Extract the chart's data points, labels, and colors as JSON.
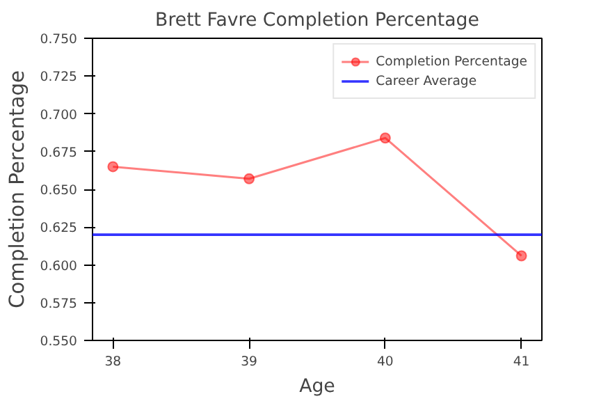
{
  "chart_data": {
    "type": "line",
    "title": "Brett Favre Completion Percentage",
    "xlabel": "Age",
    "ylabel": "Completion Percentage",
    "x": [
      38,
      39,
      40,
      41
    ],
    "series": [
      {
        "name": "Completion Percentage",
        "color": "#ff0000",
        "values": [
          0.665,
          0.657,
          0.684,
          0.606
        ]
      }
    ],
    "xlim": [
      37.85,
      41.15
    ],
    "xticks": [
      38,
      39,
      40,
      41
    ],
    "ylim": [
      0.55,
      0.75
    ],
    "yticks": [
      {
        "value": 0.55,
        "label": "0.550"
      },
      {
        "value": 0.575,
        "label": "0.575"
      },
      {
        "value": 0.6,
        "label": "0.600"
      },
      {
        "value": 0.625,
        "label": "0.625"
      },
      {
        "value": 0.65,
        "label": "0.650"
      },
      {
        "value": 0.675,
        "label": "0.675"
      },
      {
        "value": 0.7,
        "label": "0.700"
      },
      {
        "value": 0.725,
        "label": "0.725"
      },
      {
        "value": 0.75,
        "label": "0.750"
      }
    ],
    "ref_lines": [
      {
        "axis": "y",
        "value": 0.62,
        "label": "Career Average",
        "color": "#0000ff"
      }
    ],
    "marker": "circle",
    "legend": "top right",
    "grid": false
  }
}
